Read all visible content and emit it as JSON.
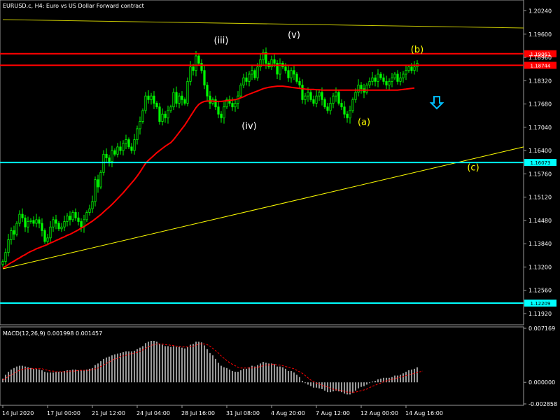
{
  "chart_data": [
    {
      "type": "candlestick",
      "title": "EURUSD.c, H4:  Euro vs US Dollar Forward contract",
      "symbol": "EURUSD.c",
      "timeframe": "H4",
      "ylim": [
        1.1165,
        1.205
      ],
      "y_ticks": [
        "1.20240",
        "1.19600",
        "1.18960",
        "1.18320",
        "1.17680",
        "1.17040",
        "1.16400",
        "1.15760",
        "1.15120",
        "1.14480",
        "1.13840",
        "1.13200",
        "1.12560",
        "1.11920"
      ],
      "y_tick_values": [
        1.2024,
        1.196,
        1.1896,
        1.1832,
        1.1768,
        1.1704,
        1.164,
        1.1576,
        1.1512,
        1.1448,
        1.1384,
        1.132,
        1.1256,
        1.1192
      ],
      "x_ticks": [
        "14 Jul 2020",
        "17 Jul 00:00",
        "21 Jul 12:00",
        "24 Jul 04:00",
        "28 Jul 16:00",
        "31 Jul 08:00",
        "4 Aug 20:00",
        "7 Aug 12:00",
        "12 Aug 00:00",
        "14 Aug 16:00"
      ],
      "x_tick_bar_index": [
        0,
        16,
        32,
        48,
        64,
        80,
        96,
        112,
        128,
        144
      ],
      "close_series": [
        1.1335,
        1.136,
        1.1395,
        1.142,
        1.141,
        1.144,
        1.1465,
        1.1455,
        1.143,
        1.1445,
        1.1448,
        1.144,
        1.145,
        1.144,
        1.142,
        1.139,
        1.14,
        1.143,
        1.145,
        1.144,
        1.1425,
        1.143,
        1.1445,
        1.146,
        1.145,
        1.147,
        1.1455,
        1.1445,
        1.143,
        1.145,
        1.147,
        1.148,
        1.15,
        1.156,
        1.154,
        1.158,
        1.163,
        1.162,
        1.161,
        1.164,
        1.163,
        1.165,
        1.164,
        1.166,
        1.167,
        1.165,
        1.164,
        1.167,
        1.17,
        1.172,
        1.175,
        1.179,
        1.178,
        1.179,
        1.177,
        1.176,
        1.172,
        1.174,
        1.173,
        1.175,
        1.176,
        1.18,
        1.177,
        1.179,
        1.178,
        1.177,
        1.183,
        1.187,
        1.186,
        1.19,
        1.188,
        1.186,
        1.182,
        1.179,
        1.177,
        1.178,
        1.176,
        1.174,
        1.173,
        1.176,
        1.178,
        1.177,
        1.176,
        1.177,
        1.179,
        1.182,
        1.184,
        1.183,
        1.185,
        1.186,
        1.184,
        1.187,
        1.189,
        1.191,
        1.188,
        1.187,
        1.189,
        1.188,
        1.185,
        1.188,
        1.187,
        1.186,
        1.184,
        1.186,
        1.185,
        1.183,
        1.182,
        1.178,
        1.179,
        1.18,
        1.178,
        1.177,
        1.179,
        1.18,
        1.178,
        1.176,
        1.175,
        1.177,
        1.179,
        1.18,
        1.177,
        1.176,
        1.174,
        1.173,
        1.175,
        1.178,
        1.18,
        1.182,
        1.181,
        1.18,
        1.182,
        1.183,
        1.184,
        1.183,
        1.185,
        1.184,
        1.183,
        1.182,
        1.183,
        1.184,
        1.185,
        1.183,
        1.184,
        1.185,
        1.186,
        1.187,
        1.186,
        1.187,
        1.188
      ],
      "moving_average": [
        1.1317,
        1.1322,
        1.1327,
        1.1332,
        1.1336,
        1.1341,
        1.1345,
        1.135,
        1.1354,
        1.1359,
        1.1363,
        1.1366,
        1.137,
        1.1373,
        1.1376,
        1.1379,
        1.1382,
        1.1386,
        1.1389,
        1.1393,
        1.1396,
        1.14,
        1.1403,
        1.1407,
        1.141,
        1.1414,
        1.1418,
        1.1422,
        1.1427,
        1.1431,
        1.1436,
        1.1441,
        1.1446,
        1.1452,
        1.1458,
        1.1464,
        1.1471,
        1.1478,
        1.1485,
        1.1492,
        1.15,
        1.1508,
        1.1516,
        1.1524,
        1.1533,
        1.1542,
        1.1551,
        1.156,
        1.157,
        1.1581,
        1.1593,
        1.1605,
        1.1613,
        1.162,
        1.1627,
        1.1634,
        1.164,
        1.1646,
        1.1652,
        1.1657,
        1.1662,
        1.167,
        1.168,
        1.169,
        1.17,
        1.171,
        1.1722,
        1.1734,
        1.1746,
        1.1758,
        1.1767,
        1.1772,
        1.1775,
        1.1776,
        1.1776,
        1.1776,
        1.1775,
        1.1775,
        1.1775,
        1.1776,
        1.1777,
        1.1778,
        1.1779,
        1.178,
        1.1782,
        1.1785,
        1.1788,
        1.1792,
        1.1795,
        1.1798,
        1.1801,
        1.1804,
        1.1807,
        1.181,
        1.1812,
        1.1814,
        1.1815,
        1.1816,
        1.1817,
        1.1817,
        1.1817,
        1.1816,
        1.1815,
        1.1814,
        1.1813,
        1.1812,
        1.1811,
        1.181,
        1.1809,
        1.1808,
        1.1808,
        1.1808,
        1.1807,
        1.1807,
        1.1806,
        1.1806,
        1.1806,
        1.1806,
        1.1806,
        1.1806,
        1.1806,
        1.1806,
        1.1806,
        1.1806,
        1.1806,
        1.1806,
        1.1806,
        1.1806,
        1.1806,
        1.1806,
        1.1806,
        1.1806,
        1.1806,
        1.1806,
        1.1806,
        1.1806,
        1.1806,
        1.1806,
        1.1806,
        1.1806,
        1.1806,
        1.1806,
        1.1807,
        1.1808,
        1.1809,
        1.181,
        1.1811,
        1.1812
      ],
      "horizontal_levels": [
        {
          "value": 1.19061,
          "label": "1.19061",
          "color": "#ff0000"
        },
        {
          "value": 1.18744,
          "label": "1.18744",
          "color": "#ff0000"
        },
        {
          "value": 1.16073,
          "label": "1.16073",
          "color": "#00ffff"
        },
        {
          "value": 1.12209,
          "label": "1.12209",
          "color": "#00ffff"
        }
      ],
      "trendlines": [
        {
          "from_bar": 0,
          "from_value": 1.1315,
          "to_bar": 186,
          "to_value": 1.165,
          "color": "#ffff00"
        },
        {
          "from_bar": 0,
          "from_value": 1.2,
          "to_bar": 186,
          "to_value": 1.1977,
          "color": "#c8c800"
        }
      ],
      "wave_labels": [
        {
          "text": "(iii)",
          "bar": 78,
          "value": 1.1935,
          "color": "#ffffff"
        },
        {
          "text": "(v)",
          "bar": 104,
          "value": 1.195,
          "color": "#ffffff"
        },
        {
          "text": "(iv)",
          "bar": 88,
          "value": 1.17,
          "color": "#ffffff"
        },
        {
          "text": "(a)",
          "bar": 129,
          "value": 1.171,
          "color": "#ffff00"
        },
        {
          "text": "(b)",
          "bar": 148,
          "value": 1.191,
          "color": "#ffff00"
        },
        {
          "text": "(c)",
          "bar": 168,
          "value": 1.1585,
          "color": "#ffff00"
        }
      ],
      "arrow": {
        "direction": "down",
        "bar": 155,
        "value": 1.1765,
        "color": "#00c0ff"
      }
    },
    {
      "type": "bar",
      "title": "MACD(12,26,9) 0.001998 0.001457",
      "ylim": [
        -0.002858,
        0.007169
      ],
      "y_ticks": [
        "0.007169",
        "0.000000",
        "-0.002858"
      ],
      "y_tick_values": [
        0.007169,
        0.0,
        -0.002858
      ],
      "macd": [
        0.0005,
        0.001,
        0.0014,
        0.0017,
        0.0019,
        0.0021,
        0.0022,
        0.0022,
        0.0021,
        0.002,
        0.0019,
        0.0018,
        0.0018,
        0.0017,
        0.0016,
        0.0014,
        0.0013,
        0.0013,
        0.0013,
        0.0014,
        0.0014,
        0.0014,
        0.0015,
        0.0016,
        0.0016,
        0.0017,
        0.0017,
        0.0016,
        0.0016,
        0.0016,
        0.0017,
        0.0018,
        0.0019,
        0.0023,
        0.0025,
        0.0028,
        0.0031,
        0.0033,
        0.0034,
        0.0036,
        0.0037,
        0.0038,
        0.0039,
        0.004,
        0.0041,
        0.0041,
        0.0041,
        0.0042,
        0.0044,
        0.0046,
        0.0048,
        0.0052,
        0.0054,
        0.0055,
        0.0055,
        0.0054,
        0.0051,
        0.005,
        0.0048,
        0.0048,
        0.0047,
        0.0048,
        0.0047,
        0.0047,
        0.0046,
        0.0045,
        0.0047,
        0.005,
        0.0051,
        0.0054,
        0.0054,
        0.0053,
        0.0049,
        0.0044,
        0.0039,
        0.0036,
        0.0031,
        0.0026,
        0.0022,
        0.002,
        0.0019,
        0.0017,
        0.0015,
        0.0014,
        0.0014,
        0.0016,
        0.0018,
        0.0018,
        0.002,
        0.0022,
        0.0021,
        0.0023,
        0.0025,
        0.0027,
        0.0026,
        0.0025,
        0.0025,
        0.0024,
        0.0021,
        0.0021,
        0.002,
        0.0018,
        0.0015,
        0.0015,
        0.0013,
        0.001,
        0.0007,
        0.0002,
        -0.0001,
        -0.0003,
        -0.0005,
        -0.0007,
        -0.0007,
        -0.0008,
        -0.0009,
        -0.0011,
        -0.0013,
        -0.0013,
        -0.0012,
        -0.0011,
        -0.0012,
        -0.0013,
        -0.0015,
        -0.0016,
        -0.0016,
        -0.0014,
        -0.0011,
        -0.0008,
        -0.0006,
        -0.0005,
        -0.0003,
        -0.0001,
        0.0001,
        0.0002,
        0.0004,
        0.0005,
        0.0006,
        0.0006,
        0.0006,
        0.0007,
        0.0009,
        0.0009,
        0.001,
        0.0012,
        0.0014,
        0.0016,
        0.0017,
        0.0018,
        0.002
      ],
      "signal": [
        0.0003,
        0.0005,
        0.0008,
        0.001,
        0.0012,
        0.0014,
        0.0016,
        0.0017,
        0.0018,
        0.0018,
        0.0018,
        0.0018,
        0.0018,
        0.0018,
        0.0018,
        0.0017,
        0.0016,
        0.0015,
        0.0015,
        0.0014,
        0.0014,
        0.0014,
        0.0014,
        0.0014,
        0.0015,
        0.0015,
        0.0015,
        0.0016,
        0.0016,
        0.0016,
        0.0016,
        0.0016,
        0.0017,
        0.0018,
        0.0019,
        0.0021,
        0.0023,
        0.0025,
        0.0027,
        0.0029,
        0.0031,
        0.0032,
        0.0034,
        0.0035,
        0.0036,
        0.0037,
        0.0038,
        0.0039,
        0.004,
        0.0041,
        0.0043,
        0.0045,
        0.0047,
        0.0049,
        0.005,
        0.0051,
        0.0051,
        0.0051,
        0.005,
        0.005,
        0.0049,
        0.0049,
        0.0048,
        0.0048,
        0.0047,
        0.0047,
        0.0047,
        0.0048,
        0.0048,
        0.0049,
        0.0051,
        0.0051,
        0.0051,
        0.005,
        0.0048,
        0.0045,
        0.0042,
        0.0039,
        0.0035,
        0.0032,
        0.0029,
        0.0026,
        0.0024,
        0.0022,
        0.002,
        0.0019,
        0.0019,
        0.0019,
        0.0019,
        0.0019,
        0.002,
        0.002,
        0.0021,
        0.0022,
        0.0023,
        0.0023,
        0.0024,
        0.0024,
        0.0023,
        0.0023,
        0.0022,
        0.0021,
        0.002,
        0.0019,
        0.0018,
        0.0016,
        0.0014,
        0.0012,
        0.0009,
        0.0006,
        0.0003,
        0.0001,
        -0.0001,
        -0.0002,
        -0.0004,
        -0.0005,
        -0.0006,
        -0.0008,
        -0.0009,
        -0.001,
        -0.001,
        -0.0011,
        -0.0012,
        -0.0013,
        -0.0013,
        -0.0013,
        -0.0013,
        -0.0012,
        -0.0011,
        -0.001,
        -0.0009,
        -0.0007,
        -0.0005,
        -0.0004,
        -0.0002,
        -0.0001,
        0.0001,
        0.0002,
        0.0003,
        0.0004,
        0.0005,
        0.0006,
        0.0007,
        0.0008,
        0.0009,
        0.001,
        0.0011,
        0.0012,
        0.0013,
        0.0014,
        0.0015
      ]
    }
  ],
  "colors": {
    "background": "#000000",
    "up_candle": "#00ff00",
    "down_candle": "#00ff00",
    "moving_average": "#ff0000",
    "macd_hist": "#c0c0c0",
    "macd_signal": "#ff0000",
    "grid": "#444444",
    "axis_text": "#ffffff"
  }
}
